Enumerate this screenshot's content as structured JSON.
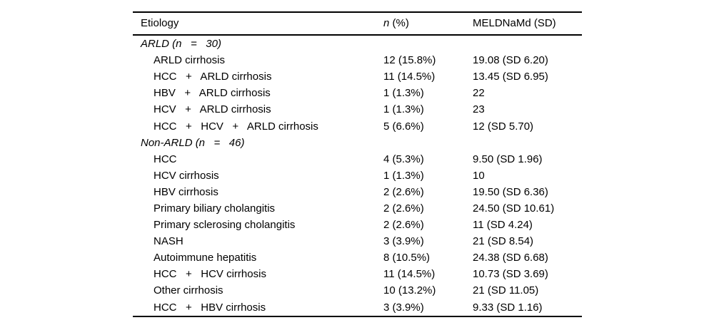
{
  "table": {
    "header": {
      "col1": "Etiology",
      "col2_italic": "n",
      "col2_rest": " (%)",
      "col3": "MELDNaMd (SD)"
    },
    "rows": [
      {
        "type": "group",
        "label": "ARLD (n   =   30)",
        "n": "",
        "meld": ""
      },
      {
        "type": "data",
        "label": "ARLD cirrhosis",
        "n": "12 (15.8%)",
        "meld": "19.08 (SD 6.20)"
      },
      {
        "type": "data",
        "label": "HCC   +   ARLD cirrhosis",
        "n": "11 (14.5%)",
        "meld": "13.45 (SD 6.95)"
      },
      {
        "type": "data",
        "label": "HBV   +   ARLD cirrhosis",
        "n": "1 (1.3%)",
        "meld": "22"
      },
      {
        "type": "data",
        "label": "HCV   +   ARLD cirrhosis",
        "n": "1 (1.3%)",
        "meld": "23"
      },
      {
        "type": "data",
        "label": "HCC   +   HCV   +   ARLD cirrhosis",
        "n": "5 (6.6%)",
        "meld": "12 (SD 5.70)"
      },
      {
        "type": "group",
        "label": "Non-ARLD (n   =   46)",
        "n": "",
        "meld": ""
      },
      {
        "type": "data",
        "label": "HCC",
        "n": "4 (5.3%)",
        "meld": "9.50 (SD 1.96)"
      },
      {
        "type": "data",
        "label": "HCV cirrhosis",
        "n": "1 (1.3%)",
        "meld": "10"
      },
      {
        "type": "data",
        "label": "HBV cirrhosis",
        "n": "2 (2.6%)",
        "meld": "19.50 (SD 6.36)"
      },
      {
        "type": "data",
        "label": "Primary biliary cholangitis",
        "n": "2 (2.6%)",
        "meld": "24.50 (SD 10.61)"
      },
      {
        "type": "data",
        "label": "Primary sclerosing cholangitis",
        "n": "2 (2.6%)",
        "meld": "11 (SD 4.24)"
      },
      {
        "type": "data",
        "label": "NASH",
        "n": "3 (3.9%)",
        "meld": "21 (SD 8.54)"
      },
      {
        "type": "data",
        "label": "Autoimmune hepatitis",
        "n": "8 (10.5%)",
        "meld": "24.38 (SD 6.68)"
      },
      {
        "type": "data",
        "label": "HCC   +   HCV cirrhosis",
        "n": "11 (14.5%)",
        "meld": "10.73 (SD 3.69)"
      },
      {
        "type": "data",
        "label": "Other cirrhosis",
        "n": "10 (13.2%)",
        "meld": "21 (SD 11.05)"
      },
      {
        "type": "data",
        "label": "HCC   +   HBV cirrhosis",
        "n": "3 (3.9%)",
        "meld": "9.33 (SD 1.16)"
      }
    ]
  }
}
